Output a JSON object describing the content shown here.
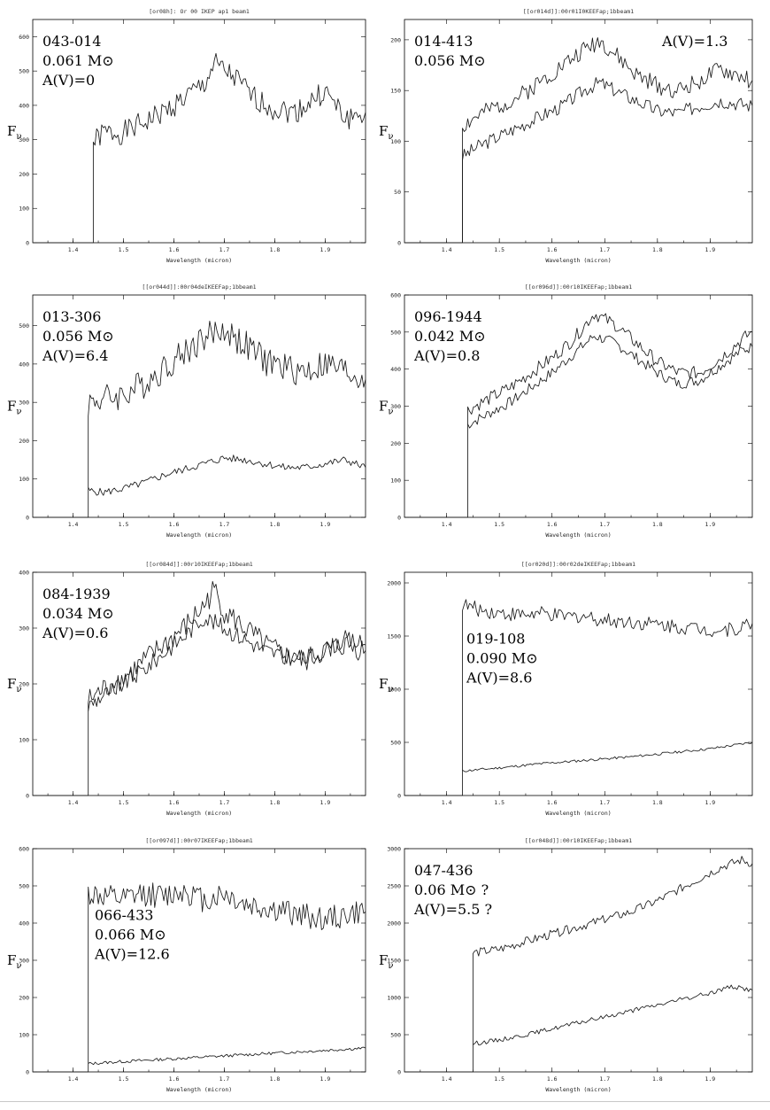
{
  "chart_data": [
    {
      "type": "line",
      "title": "[or08h]: Or 00 IKEP ap1 beam1",
      "labels": [
        "043-014",
        "0.061 M⊙",
        "A(V)=0"
      ],
      "ann_pos": "top-left",
      "ylabel": "Fν",
      "xlabel": "Wavelength (micron)",
      "xlim": [
        1.32,
        1.98
      ],
      "ylim": [
        0,
        650
      ],
      "xticks": [
        1.4,
        1.5,
        1.6,
        1.7,
        1.8,
        1.9
      ],
      "xticklabels": [
        "1.4",
        "1.5",
        "1.6",
        "1.7",
        "1.8",
        "1.9"
      ],
      "yticks": [
        0,
        100,
        200,
        300,
        400,
        500,
        600
      ],
      "series": [
        {
          "x": [
            1.32,
            1.44,
            1.44,
            1.46,
            1.5,
            1.54,
            1.58,
            1.62,
            1.66,
            1.68,
            1.7,
            1.72,
            1.76,
            1.8,
            1.84,
            1.86,
            1.88,
            1.9,
            1.94,
            1.98
          ],
          "y": [
            0,
            0,
            290,
            320,
            320,
            350,
            380,
            420,
            460,
            520,
            500,
            480,
            420,
            390,
            380,
            400,
            420,
            440,
            360,
            380
          ],
          "noise": 35,
          "seed": 1
        }
      ]
    },
    {
      "type": "line",
      "title": "[[or014d]]:00r01I0KEEFap;1bbeam1",
      "labels": [
        "014-413",
        "0.056 M⊙",
        "A(V)=1.3"
      ],
      "ann_pos": "split",
      "ylabel": "Fν",
      "xlabel": "Wavelength (micron)",
      "xlim": [
        1.32,
        1.98
      ],
      "ylim": [
        0,
        220
      ],
      "xticks": [
        1.4,
        1.5,
        1.6,
        1.7,
        1.8,
        1.9
      ],
      "xticklabels": [
        "1.4",
        "1.5",
        "1.6",
        "1.7",
        "1.8",
        "1.9"
      ],
      "yticks": [
        0,
        50,
        100,
        150,
        200
      ],
      "series": [
        {
          "x": [
            1.32,
            1.43,
            1.43,
            1.46,
            1.5,
            1.54,
            1.58,
            1.62,
            1.66,
            1.69,
            1.72,
            1.76,
            1.8,
            1.84,
            1.88,
            1.92,
            1.98
          ],
          "y": [
            0,
            0,
            115,
            125,
            135,
            145,
            160,
            175,
            190,
            200,
            185,
            165,
            155,
            150,
            160,
            170,
            160
          ],
          "noise": 9,
          "seed": 2
        },
        {
          "x": [
            1.32,
            1.43,
            1.43,
            1.46,
            1.5,
            1.54,
            1.58,
            1.62,
            1.66,
            1.69,
            1.72,
            1.76,
            1.8,
            1.84,
            1.88,
            1.92,
            1.98
          ],
          "y": [
            0,
            0,
            85,
            95,
            105,
            115,
            125,
            135,
            150,
            158,
            150,
            140,
            130,
            128,
            135,
            140,
            135
          ],
          "noise": 7,
          "seed": 3
        }
      ]
    },
    {
      "type": "line",
      "title": "[[or044d]]:00r04deIKEEFap;1bbeam1",
      "labels": [
        "013-306",
        "0.056 M⊙",
        "A(V)=6.4"
      ],
      "ann_pos": "top-left",
      "ylabel": "Fν",
      "xlabel": "Wavelength (micron)",
      "xlim": [
        1.32,
        1.98
      ],
      "ylim": [
        0,
        580
      ],
      "xticks": [
        1.4,
        1.5,
        1.6,
        1.7,
        1.8,
        1.9
      ],
      "xticklabels": [
        "1.4",
        "1.5",
        "1.6",
        "1.7",
        "1.8",
        "1.9"
      ],
      "yticks": [
        0,
        100,
        200,
        300,
        400,
        500
      ],
      "series": [
        {
          "x": [
            1.32,
            1.43,
            1.43,
            1.46,
            1.5,
            1.54,
            1.58,
            1.62,
            1.66,
            1.7,
            1.74,
            1.78,
            1.82,
            1.86,
            1.9,
            1.94,
            1.98
          ],
          "y": [
            0,
            0,
            300,
            310,
            320,
            350,
            390,
            430,
            470,
            490,
            450,
            410,
            390,
            380,
            400,
            380,
            360
          ],
          "noise": 40,
          "seed": 4
        },
        {
          "x": [
            1.43,
            1.46,
            1.5,
            1.54,
            1.58,
            1.62,
            1.66,
            1.7,
            1.74,
            1.78,
            1.82,
            1.86,
            1.9,
            1.94,
            1.98
          ],
          "y": [
            70,
            65,
            75,
            90,
            110,
            125,
            140,
            155,
            150,
            140,
            130,
            130,
            140,
            150,
            130
          ],
          "noise": 10,
          "seed": 5
        }
      ]
    },
    {
      "type": "line",
      "title": "[[or096d]]:00r10IKEEFap;1bbeam1",
      "labels": [
        "096-1944",
        "0.042 M⊙",
        "A(V)=0.8"
      ],
      "ann_pos": "top-left",
      "ylabel": "Fν",
      "xlabel": "Wavelength (micron)",
      "xlim": [
        1.32,
        1.98
      ],
      "ylim": [
        0,
        600
      ],
      "xticks": [
        1.4,
        1.5,
        1.6,
        1.7,
        1.8,
        1.9
      ],
      "xticklabels": [
        "1.4",
        "1.5",
        "1.6",
        "1.7",
        "1.8",
        "1.9"
      ],
      "yticks": [
        0,
        100,
        200,
        300,
        400,
        500,
        600
      ],
      "series": [
        {
          "x": [
            1.32,
            1.44,
            1.44,
            1.48,
            1.52,
            1.56,
            1.6,
            1.64,
            1.68,
            1.72,
            1.76,
            1.8,
            1.84,
            1.88,
            1.92,
            1.96,
            1.98
          ],
          "y": [
            0,
            0,
            290,
            320,
            350,
            390,
            430,
            480,
            550,
            520,
            470,
            420,
            390,
            390,
            430,
            480,
            500
          ],
          "noise": 18,
          "seed": 6
        },
        {
          "x": [
            1.44,
            1.48,
            1.52,
            1.56,
            1.6,
            1.64,
            1.68,
            1.72,
            1.76,
            1.8,
            1.84,
            1.88,
            1.92,
            1.96,
            1.98
          ],
          "y": [
            250,
            280,
            310,
            350,
            390,
            440,
            490,
            470,
            430,
            390,
            360,
            370,
            410,
            450,
            460
          ],
          "noise": 15,
          "seed": 7
        }
      ]
    },
    {
      "type": "line",
      "title": "[[or084d]]:00r10IKEEFap;1bbeam1",
      "labels": [
        "084-1939",
        "0.034 M⊙",
        "A(V)=0.6"
      ],
      "ann_pos": "top-left",
      "ylabel": "Fν",
      "xlabel": "Wavelength (micron)",
      "xlim": [
        1.32,
        1.98
      ],
      "ylim": [
        0,
        400
      ],
      "xticks": [
        1.4,
        1.5,
        1.6,
        1.7,
        1.8,
        1.9
      ],
      "xticklabels": [
        "1.4",
        "1.5",
        "1.6",
        "1.7",
        "1.8",
        "1.9"
      ],
      "yticks": [
        0,
        100,
        200,
        300,
        400
      ],
      "series": [
        {
          "x": [
            1.32,
            1.43,
            1.43,
            1.46,
            1.5,
            1.54,
            1.58,
            1.62,
            1.66,
            1.68,
            1.7,
            1.74,
            1.78,
            1.82,
            1.86,
            1.9,
            1.94,
            1.98
          ],
          "y": [
            0,
            0,
            170,
            190,
            210,
            240,
            270,
            300,
            340,
            370,
            330,
            300,
            270,
            250,
            240,
            260,
            270,
            260
          ],
          "noise": 22,
          "seed": 8
        },
        {
          "x": [
            1.43,
            1.46,
            1.5,
            1.54,
            1.58,
            1.62,
            1.66,
            1.7,
            1.74,
            1.78,
            1.82,
            1.86,
            1.9,
            1.94,
            1.98
          ],
          "y": [
            160,
            180,
            200,
            225,
            255,
            285,
            320,
            300,
            280,
            260,
            250,
            245,
            260,
            280,
            270
          ],
          "noise": 16,
          "seed": 9
        }
      ]
    },
    {
      "type": "line",
      "title": "[[or020d]]:00r02deIKEEFap;1bbeam1",
      "labels": [
        "019-108",
        "0.090 M⊙",
        "A(V)=8.6"
      ],
      "ann_pos": "mid-left",
      "ylabel": "Fν",
      "xlabel": "Wavelength (micron)",
      "xlim": [
        1.32,
        1.98
      ],
      "ylim": [
        0,
        2100
      ],
      "xticks": [
        1.4,
        1.5,
        1.6,
        1.7,
        1.8,
        1.9
      ],
      "xticklabels": [
        "1.4",
        "1.5",
        "1.6",
        "1.7",
        "1.8",
        "1.9"
      ],
      "yticks": [
        0,
        500,
        1000,
        1500,
        2000
      ],
      "series": [
        {
          "x": [
            1.32,
            1.43,
            1.43,
            1.46,
            1.5,
            1.54,
            1.58,
            1.62,
            1.66,
            1.7,
            1.74,
            1.78,
            1.82,
            1.86,
            1.9,
            1.94,
            1.98
          ],
          "y": [
            0,
            0,
            1800,
            1750,
            1720,
            1700,
            1710,
            1680,
            1690,
            1650,
            1640,
            1620,
            1600,
            1580,
            1560,
            1560,
            1620
          ],
          "noise": 70,
          "seed": 10
        },
        {
          "x": [
            1.43,
            1.5,
            1.58,
            1.66,
            1.74,
            1.82,
            1.9,
            1.98
          ],
          "y": [
            230,
            260,
            300,
            330,
            360,
            400,
            440,
            500
          ],
          "noise": 12,
          "seed": 11
        }
      ]
    },
    {
      "type": "line",
      "title": "[[or097d]]:00r07IKEEFap;1bbeam1",
      "labels": [
        "066-433",
        "0.066 M⊙",
        "A(V)=12.6"
      ],
      "ann_pos": "mid-left",
      "ylabel": "Fν",
      "xlabel": "Wavelength (micron)",
      "xlim": [
        1.32,
        1.98
      ],
      "ylim": [
        0,
        600
      ],
      "xticks": [
        1.4,
        1.5,
        1.6,
        1.7,
        1.8,
        1.9
      ],
      "xticklabels": [
        "1.4",
        "1.5",
        "1.6",
        "1.7",
        "1.8",
        "1.9"
      ],
      "yticks": [
        0,
        100,
        200,
        300,
        400,
        500,
        600
      ],
      "series": [
        {
          "x": [
            1.32,
            1.43,
            1.43,
            1.46,
            1.5,
            1.54,
            1.58,
            1.62,
            1.66,
            1.7,
            1.74,
            1.78,
            1.82,
            1.86,
            1.9,
            1.94,
            1.98
          ],
          "y": [
            0,
            0,
            480,
            470,
            460,
            480,
            470,
            490,
            460,
            480,
            450,
            440,
            430,
            420,
            410,
            420,
            430
          ],
          "noise": 35,
          "seed": 12
        },
        {
          "x": [
            1.43,
            1.5,
            1.58,
            1.66,
            1.74,
            1.82,
            1.9,
            1.98
          ],
          "y": [
            22,
            28,
            34,
            40,
            46,
            52,
            58,
            64
          ],
          "noise": 4,
          "seed": 13
        }
      ]
    },
    {
      "type": "line",
      "title": "[[or048d]]:00r10IKEEFap;1bbeam1",
      "labels": [
        "047-436",
        "0.06 M⊙ ?",
        "A(V)=5.5 ?"
      ],
      "ann_pos": "top-left",
      "ylabel": "Fν",
      "xlabel": "Wavelength (micron)",
      "xlim": [
        1.32,
        1.98
      ],
      "ylim": [
        0,
        3000
      ],
      "xticks": [
        1.4,
        1.5,
        1.6,
        1.7,
        1.8,
        1.9
      ],
      "xticklabels": [
        "1.4",
        "1.5",
        "1.6",
        "1.7",
        "1.8",
        "1.9"
      ],
      "yticks": [
        0,
        500,
        1000,
        1500,
        2000,
        2500,
        3000
      ],
      "series": [
        {
          "x": [
            1.32,
            1.45,
            1.45,
            1.5,
            1.55,
            1.6,
            1.65,
            1.7,
            1.75,
            1.8,
            1.84,
            1.88,
            1.92,
            1.96,
            1.98
          ],
          "y": [
            0,
            0,
            1600,
            1650,
            1750,
            1850,
            1950,
            2050,
            2150,
            2300,
            2450,
            2600,
            2750,
            2850,
            2800
          ],
          "noise": 60,
          "seed": 14
        },
        {
          "x": [
            1.45,
            1.5,
            1.55,
            1.6,
            1.65,
            1.7,
            1.75,
            1.8,
            1.85,
            1.9,
            1.94,
            1.98
          ],
          "y": [
            380,
            430,
            500,
            580,
            660,
            740,
            820,
            900,
            980,
            1060,
            1150,
            1100
          ],
          "noise": 30,
          "seed": 15
        }
      ]
    }
  ]
}
